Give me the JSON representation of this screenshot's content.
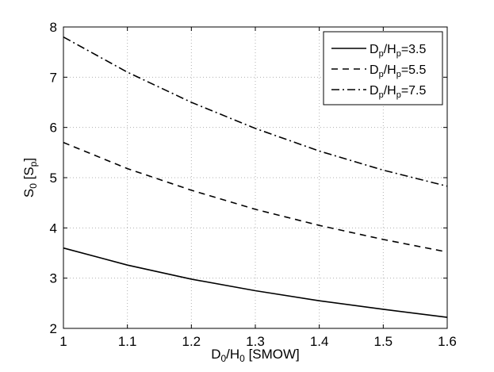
{
  "chart_data": {
    "type": "line",
    "xlabel": "D0/H0 [SMOW]",
    "xlabel_parts": {
      "base1": "D",
      "sub1": "0",
      "mid": "/H",
      "sub2": "0",
      "tail": " [SMOW]"
    },
    "ylabel": "S0 [Sp]",
    "ylabel_parts": {
      "base": "S",
      "sub": "0",
      "mid": " [S",
      "sub2": "p",
      "tail": "]"
    },
    "xlim": [
      1.0,
      1.6
    ],
    "ylim": [
      2,
      8
    ],
    "xticks": [
      1,
      1.1,
      1.2,
      1.3,
      1.4,
      1.5,
      1.6
    ],
    "xtick_labels": [
      "1",
      "1.1",
      "1.2",
      "1.3",
      "1.4",
      "1.5",
      "1.6"
    ],
    "yticks": [
      2,
      3,
      4,
      5,
      6,
      7,
      8
    ],
    "ytick_labels": [
      "2",
      "3",
      "4",
      "5",
      "6",
      "7",
      "8"
    ],
    "grid": true,
    "legend_position": "top-right",
    "x": [
      1.0,
      1.1,
      1.2,
      1.3,
      1.4,
      1.5,
      1.6
    ],
    "series": [
      {
        "name": "Dp/Hp=3.5",
        "legend_parts": {
          "a": "D",
          "sa": "p",
          "b": "/H",
          "sb": "p",
          "c": "=3.5"
        },
        "line_style": "solid",
        "values": [
          3.6,
          3.26,
          2.98,
          2.75,
          2.55,
          2.38,
          2.22
        ]
      },
      {
        "name": "Dp/Hp=5.5",
        "legend_parts": {
          "a": "D",
          "sa": "p",
          "b": "/H",
          "sb": "p",
          "c": "=5.5"
        },
        "line_style": "dashed",
        "values": [
          5.7,
          5.18,
          4.75,
          4.37,
          4.05,
          3.77,
          3.52
        ]
      },
      {
        "name": "Dp/Hp=7.5",
        "legend_parts": {
          "a": "D",
          "sa": "p",
          "b": "/H",
          "sb": "p",
          "c": "=7.5"
        },
        "line_style": "dashdot",
        "values": [
          7.8,
          7.1,
          6.5,
          5.98,
          5.53,
          5.15,
          4.83
        ]
      }
    ],
    "colors": {
      "line": "#000000",
      "grid": "#b0b0b0",
      "background": "#ffffff"
    }
  }
}
